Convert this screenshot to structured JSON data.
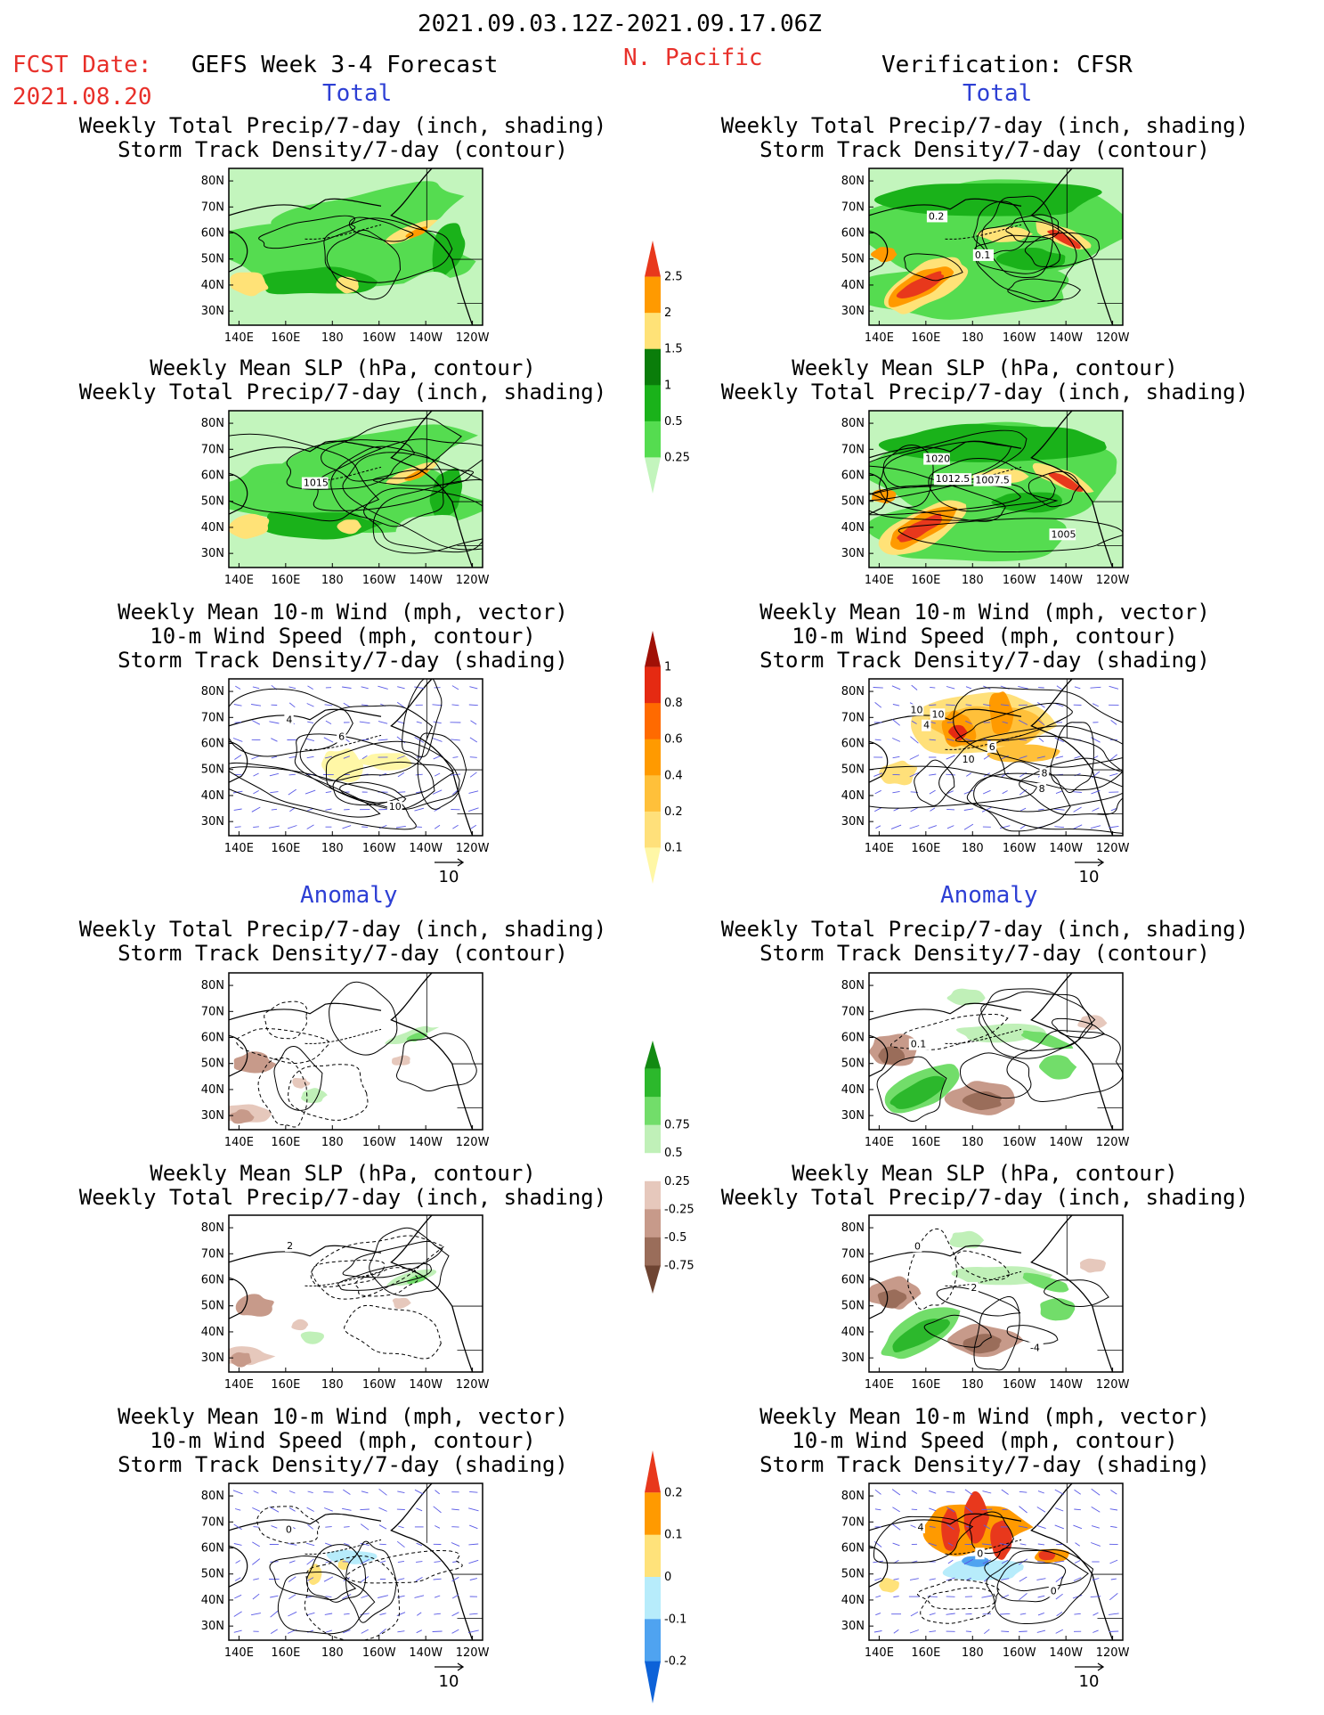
{
  "header": {
    "date_range": "2021.09.03.12Z-2021.09.17.06Z",
    "fcst_label": "FCST Date:",
    "fcst_date": "2021.08.20",
    "forecast_name": "GEFS Week 3-4 Forecast",
    "region": "N. Pacific",
    "verification": "Verification: CFSR"
  },
  "sections": {
    "total": "Total",
    "anomaly": "Anomaly"
  },
  "panel_titles": {
    "precip_track": [
      "Weekly Total Precip/7-day (inch, shading)",
      "Storm Track Density/7-day (contour)"
    ],
    "slp_precip": [
      "Weekly Mean SLP (hPa, contour)",
      "Weekly Total Precip/7-day (inch, shading)"
    ],
    "wind_track": [
      "Weekly Mean 10-m Wind (mph, vector)",
      "10-m Wind Speed (mph, contour)",
      "Storm Track Density/7-day (shading)"
    ]
  },
  "axes": {
    "lat": [
      "80N",
      "70N",
      "60N",
      "50N",
      "40N",
      "30N"
    ],
    "lon": [
      "140E",
      "160E",
      "180",
      "160W",
      "140W",
      "120W"
    ]
  },
  "vector_ref": "10",
  "contour_labels": {
    "obs_track": [
      "0.2",
      "0.1"
    ],
    "fc_slp": [
      "1015"
    ],
    "obs_slp": [
      "1012.5",
      "1007.5",
      "1005",
      "1020"
    ],
    "fc_wind": [
      "4",
      "6",
      "10"
    ],
    "obs_wind": [
      "10",
      "6",
      "8",
      "4",
      "10",
      "8",
      "10"
    ],
    "obs_track_anom": [
      "0.1"
    ],
    "fc_slp_anom": [
      "2"
    ],
    "obs_slp_anom": [
      "0",
      "2",
      "-4"
    ],
    "fc_wind_anom": [
      "0"
    ],
    "obs_wind_anom": [
      "4",
      "0",
      "0"
    ]
  },
  "colorbars": {
    "precip_total": {
      "labels": [
        "0.25",
        "0.5",
        "1",
        "1.5",
        "2",
        "2.5"
      ],
      "colors": [
        "#c3f5bd",
        "#55dc50",
        "#1ab21a",
        "#0a7d0a",
        "#ffe277",
        "#ff9a00",
        "#e8381c"
      ]
    },
    "track_total": {
      "labels": [
        "0.1",
        "0.2",
        "0.4",
        "0.6",
        "0.8",
        "1"
      ],
      "colors": [
        "#fff7a6",
        "#ffe07a",
        "#ffc03a",
        "#ff9a00",
        "#ff6a00",
        "#e52a12",
        "#a01006"
      ]
    },
    "precip_anom": {
      "labels": [
        "-0.75",
        "-0.5",
        "-0.25",
        "0.25",
        "0.5",
        "0.75"
      ],
      "colors": [
        "#6e4432",
        "#9a6d5a",
        "#c79a8a",
        "#e6c8bc",
        "#ffffff",
        "#c0f0b8",
        "#72dd6a",
        "#2cb82c",
        "#128a12"
      ]
    },
    "track_anom": {
      "labels": [
        "-0.2",
        "-0.1",
        "0",
        "0.1",
        "0.2"
      ],
      "colors": [
        "#0d62d8",
        "#4fa3f0",
        "#b7ecfb",
        "#ffe27a",
        "#ff9a00",
        "#e8381c"
      ]
    }
  },
  "chart_data": [
    {
      "type": "heatmap",
      "panel": "forecast-total-precip-track",
      "title": [
        "Weekly Total Precip/7-day (inch, shading)",
        "Storm Track Density/7-day (contour)"
      ],
      "x_range": [
        "140E",
        "120W"
      ],
      "y_range": [
        "25N",
        "85N"
      ],
      "values": "gridded field"
    },
    {
      "type": "heatmap",
      "panel": "verification-total-precip-track",
      "title": [
        "Weekly Total Precip/7-day (inch, shading)",
        "Storm Track Density/7-day (contour)"
      ],
      "contour_labels": [
        "0.2",
        "0.1"
      ]
    },
    {
      "type": "heatmap",
      "panel": "forecast-total-slp-precip",
      "contour_labels": [
        "1015"
      ]
    },
    {
      "type": "heatmap",
      "panel": "verification-total-slp-precip",
      "contour_labels": [
        "1012.5",
        "1007.5",
        "1005",
        "1020"
      ]
    },
    {
      "type": "heatmap",
      "panel": "forecast-total-wind-track",
      "vector_ref": "10"
    },
    {
      "type": "heatmap",
      "panel": "verification-total-wind-track",
      "vector_ref": "10"
    },
    {
      "type": "heatmap",
      "panel": "forecast-anomaly-precip-track"
    },
    {
      "type": "heatmap",
      "panel": "verification-anomaly-precip-track",
      "contour_labels": [
        "0.1"
      ]
    },
    {
      "type": "heatmap",
      "panel": "forecast-anomaly-slp-precip",
      "contour_labels": [
        "2"
      ]
    },
    {
      "type": "heatmap",
      "panel": "verification-anomaly-slp-precip",
      "contour_labels": [
        "0",
        "2",
        "-4"
      ]
    },
    {
      "type": "heatmap",
      "panel": "forecast-anomaly-wind-track",
      "vector_ref": "10"
    },
    {
      "type": "heatmap",
      "panel": "verification-anomaly-wind-track",
      "vector_ref": "10"
    }
  ]
}
